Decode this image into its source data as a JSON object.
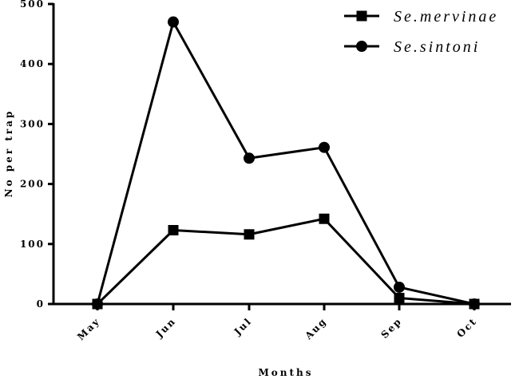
{
  "chart_data": {
    "type": "line",
    "categories": [
      "May",
      "Jun",
      "Jul",
      "Aug",
      "Sep",
      "Oct"
    ],
    "series": [
      {
        "name": "Se.mervinae",
        "marker": "square",
        "values": [
          0,
          123,
          116,
          142,
          10,
          0
        ]
      },
      {
        "name": "Se.sintoni",
        "marker": "circle",
        "values": [
          0,
          470,
          243,
          261,
          28,
          0
        ]
      }
    ],
    "title": "",
    "xlabel": "Months",
    "ylabel": "No per trap",
    "ylim": [
      0,
      500
    ],
    "yticks": [
      0,
      100,
      200,
      300,
      400,
      500
    ],
    "legend": "top-right",
    "grid": false,
    "color": "#000000"
  }
}
